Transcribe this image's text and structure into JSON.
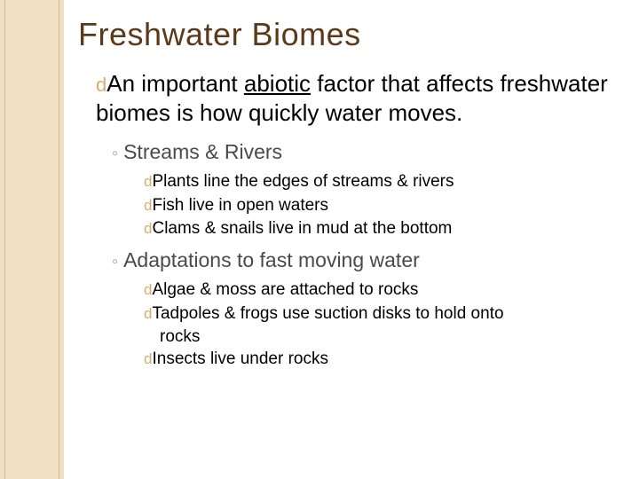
{
  "colors": {
    "band_bg": "#f0e0c4",
    "band_line": "#d4b888",
    "title_color": "#5a3a1a",
    "bullet_color": "#d4b070",
    "body_color": "#000000",
    "sub_color": "#4a4a4a",
    "page_bg": "#ffffff"
  },
  "title": "Freshwater Biomes",
  "main": {
    "bullet": "d",
    "text_before": "An important ",
    "underlined": "abiotic",
    "text_after": " factor that affects freshwater biomes is how quickly water moves."
  },
  "sections": [
    {
      "open_bullet": "◦",
      "heading": "Streams & Rivers",
      "items": [
        {
          "bullet": "d",
          "text": "Plants line the edges of streams & rivers"
        },
        {
          "bullet": "d",
          "text": "Fish live in open waters"
        },
        {
          "bullet": "d",
          "text": "Clams & snails live in mud at the bottom"
        }
      ]
    },
    {
      "open_bullet": "◦",
      "heading": "Adaptations to fast moving water",
      "items": [
        {
          "bullet": "d",
          "text": "Algae & moss are attached to rocks"
        },
        {
          "bullet": "d",
          "text": "Tadpoles & frogs use suction disks to hold onto",
          "cont": "rocks"
        },
        {
          "bullet": "d",
          "text": "Insects live under rocks"
        }
      ]
    }
  ]
}
